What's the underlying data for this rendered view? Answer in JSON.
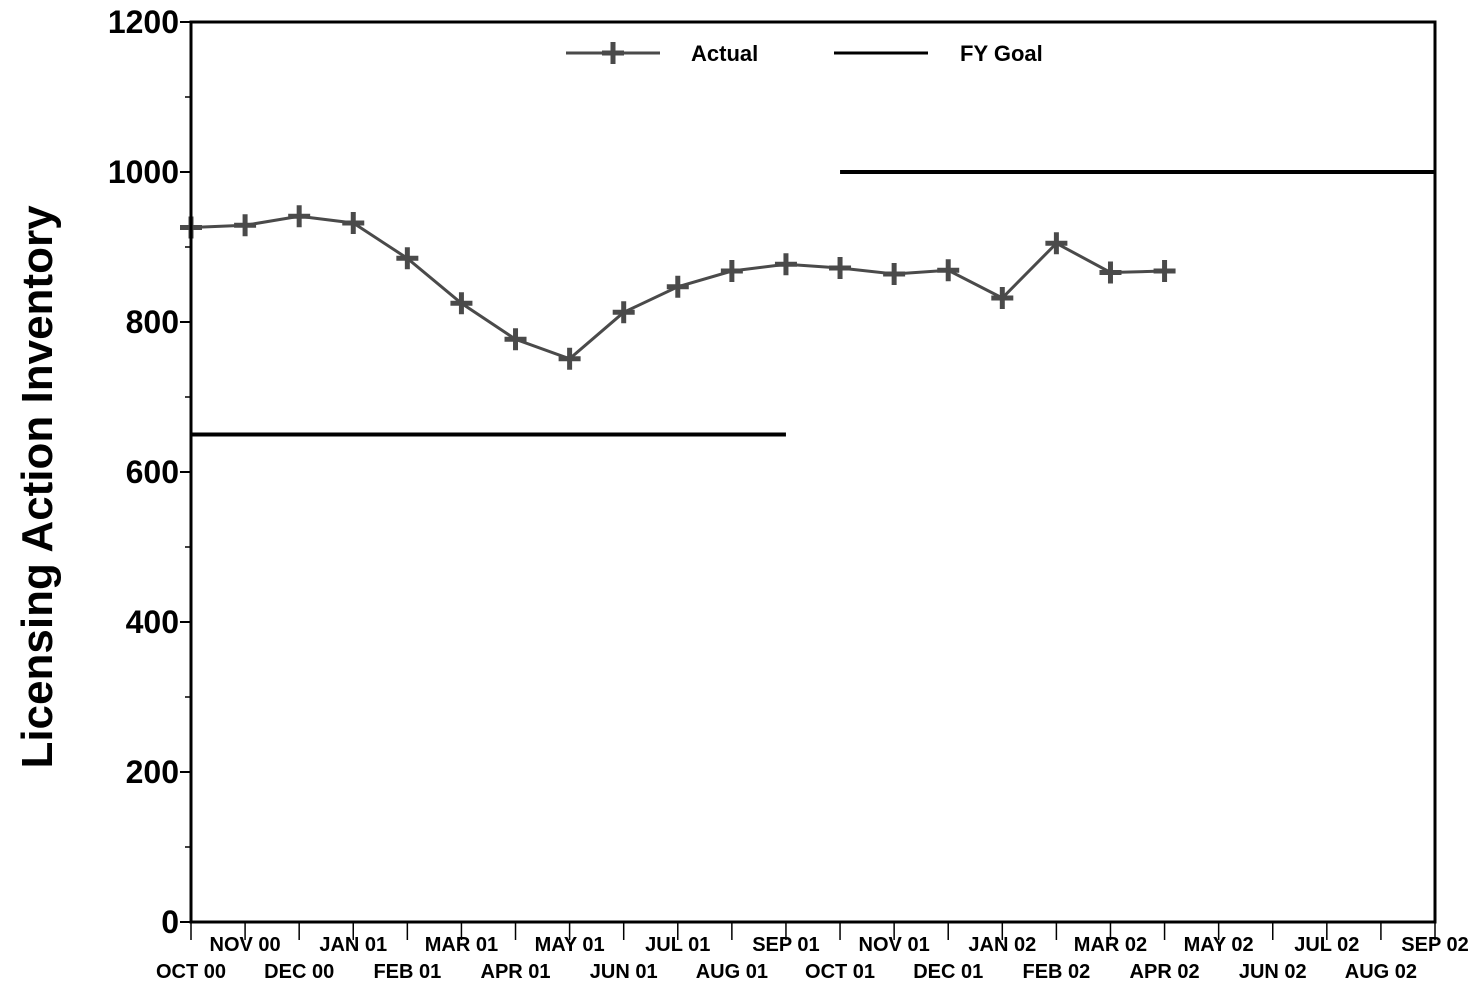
{
  "chart_data": {
    "type": "line",
    "title": "",
    "xlabel": "",
    "ylabel": "Licensing Action Inventory",
    "ylim": [
      0,
      1200
    ],
    "yticks": [
      0,
      200,
      400,
      600,
      800,
      1000,
      1200
    ],
    "categories": [
      "OCT 00",
      "NOV 00",
      "DEC 00",
      "JAN 01",
      "FEB 01",
      "MAR 01",
      "APR 01",
      "MAY 01",
      "JUN 01",
      "JUL 01",
      "AUG 01",
      "SEP 01",
      "OCT 01",
      "NOV 01",
      "DEC 01",
      "JAN 02",
      "FEB 02",
      "MAR 02",
      "APR 02",
      "MAY 02",
      "JUN 02",
      "JUL 02",
      "AUG 02",
      "SEP 02"
    ],
    "grid": false,
    "legend_position": "top",
    "series": [
      {
        "name": "Actual",
        "color": "#4a4a4a",
        "marker": "plus",
        "values": [
          926,
          929,
          941,
          932,
          885,
          825,
          777,
          751,
          813,
          847,
          868,
          877,
          872,
          864,
          869,
          832,
          905,
          866,
          868,
          null,
          null,
          null,
          null,
          null
        ]
      },
      {
        "name": "FY Goal",
        "color": "#000000",
        "marker": "none",
        "segments": [
          {
            "from": "OCT 00",
            "to": "SEP 01",
            "value": 650
          },
          {
            "from": "OCT 01",
            "to": "SEP 02",
            "value": 1000
          }
        ]
      }
    ]
  }
}
